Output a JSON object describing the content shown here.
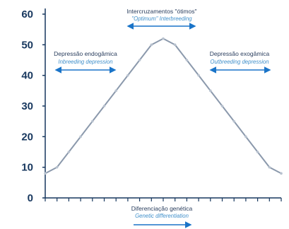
{
  "chart_data": {
    "type": "line",
    "title": "",
    "xlabel": "",
    "ylabel": "",
    "x": [
      0,
      1,
      2,
      3,
      4,
      5,
      6,
      7,
      8,
      9,
      10,
      11,
      12,
      13,
      14,
      15,
      16,
      17,
      18,
      19,
      20
    ],
    "values": [
      8,
      10,
      15,
      20,
      25,
      30,
      35,
      40,
      45,
      50,
      52,
      50,
      45,
      40,
      35,
      30,
      25,
      20,
      15,
      10,
      8
    ],
    "ylim": [
      0,
      60
    ],
    "yticks": [
      "0",
      "10",
      "20",
      "30",
      "40",
      "50",
      "60"
    ],
    "grid": false,
    "legend": "none",
    "colors": {
      "line": "#8b99ac",
      "marker": "#b8c2cf",
      "axis": "#17375e",
      "tick_label": "#17375e",
      "arrow": "#1a74c8",
      "annotation_main": "#2a3e5e",
      "annotation_sub": "#3f8fca"
    },
    "annotations": {
      "optimum": {
        "main": "Intercruzamentos \"ótimos\"",
        "sub": "\"Optimum\" Interbreeding"
      },
      "inbreeding": {
        "main": "Depressão endogâmica",
        "sub": "Inbreeding depression"
      },
      "outbreeding": {
        "main": "Depressão exogâmica",
        "sub": "Outbreeding depression"
      },
      "differentiation": {
        "main": "Diferenciação genética",
        "sub": "Genetic differentiation"
      }
    }
  }
}
